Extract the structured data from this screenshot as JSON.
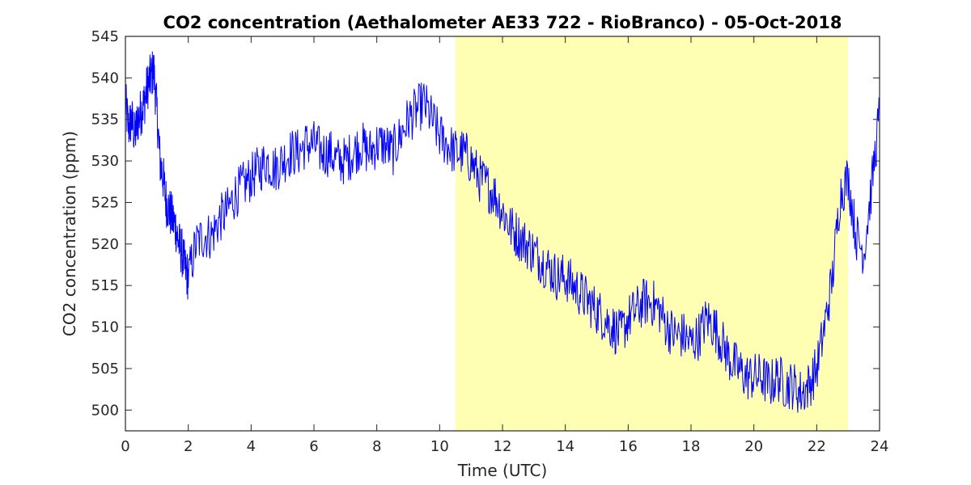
{
  "chart_data": {
    "type": "line",
    "title": "CO2 concentration (Aethalometer AE33 722 - RioBranco) - 05-Oct-2018",
    "xlabel": "Time (UTC)",
    "ylabel": "CO2 concentration (ppm)",
    "xlim": [
      0,
      24
    ],
    "ylim": [
      497.5,
      545
    ],
    "xticks": [
      0,
      2,
      4,
      6,
      8,
      10,
      12,
      14,
      16,
      18,
      20,
      22,
      24
    ],
    "yticks": [
      500,
      505,
      510,
      515,
      520,
      525,
      530,
      535,
      540,
      545
    ],
    "grid": false,
    "line_color": "#0000ff",
    "highlight": {
      "x_start": 10.5,
      "x_end": 23.0,
      "color": "#ffffb3"
    },
    "series": [
      {
        "x": [
          0.0,
          0.1,
          0.2,
          0.3,
          0.4,
          0.5,
          0.6,
          0.7,
          0.8,
          0.9,
          1.0,
          1.1,
          1.2,
          1.3,
          1.4,
          1.5,
          1.6,
          1.7,
          1.8,
          1.9,
          2.0,
          2.25,
          2.5,
          2.75,
          3.0,
          3.25,
          3.5,
          3.75,
          4.0,
          4.25,
          4.5,
          4.75,
          5.0,
          5.25,
          5.5,
          5.75,
          6.0,
          6.25,
          6.5,
          6.75,
          7.0,
          7.25,
          7.5,
          7.75,
          8.0,
          8.25,
          8.5,
          8.75,
          9.0,
          9.25,
          9.5,
          9.75,
          10.0,
          10.25,
          10.5,
          10.75,
          11.0,
          11.25,
          11.5,
          11.75,
          12.0,
          12.25,
          12.5,
          12.75,
          13.0,
          13.25,
          13.5,
          13.75,
          14.0,
          14.25,
          14.5,
          14.75,
          15.0,
          15.25,
          15.5,
          15.75,
          16.0,
          16.25,
          16.5,
          16.75,
          17.0,
          17.25,
          17.5,
          17.75,
          18.0,
          18.25,
          18.5,
          18.75,
          19.0,
          19.25,
          19.5,
          19.75,
          20.0,
          20.25,
          20.5,
          20.75,
          21.0,
          21.25,
          21.5,
          21.75,
          22.0,
          22.25,
          22.5,
          22.75,
          23.0,
          23.25,
          23.5,
          23.75,
          24.0
        ],
        "values": [
          537,
          534,
          535,
          533,
          535,
          536,
          537,
          539,
          540,
          541,
          536,
          530,
          528,
          525,
          524,
          523,
          522,
          520,
          519,
          517,
          516,
          520,
          521,
          521,
          523,
          524,
          526,
          527,
          528,
          529,
          530,
          529,
          530,
          531,
          531,
          532,
          532,
          531,
          531,
          530,
          530,
          531,
          532,
          531,
          532,
          532,
          531,
          533,
          535,
          536,
          537,
          535,
          533,
          532,
          531,
          531,
          530,
          528,
          527,
          526,
          524,
          522,
          521,
          520,
          519,
          518,
          517,
          516,
          516,
          515,
          514,
          513,
          512,
          511,
          510,
          509,
          511,
          512,
          513,
          513,
          512,
          510,
          509,
          509,
          508,
          509,
          511,
          510,
          508,
          506,
          505,
          504,
          504,
          504,
          503,
          504,
          503,
          503,
          502,
          503,
          505,
          510,
          516,
          526,
          528,
          521,
          519,
          527,
          536
        ]
      }
    ]
  }
}
